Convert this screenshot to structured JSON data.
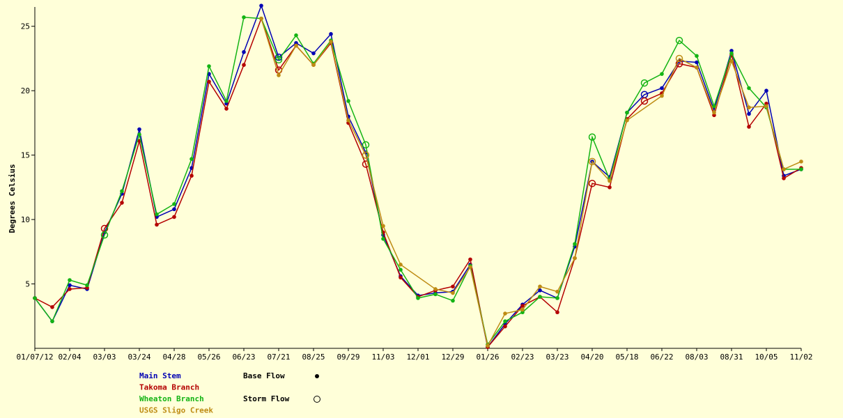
{
  "chart_data": {
    "type": "line",
    "ylabel": "Degrees Celsius",
    "xlabel": "",
    "ylim": [
      0,
      26.5
    ],
    "yticks": [
      5,
      10,
      15,
      20,
      25
    ],
    "x_tick_labels": [
      "01/07/12",
      "02/04",
      "03/03",
      "03/24",
      "04/28",
      "05/26",
      "06/23",
      "07/21",
      "08/25",
      "09/29",
      "11/03",
      "12/01",
      "12/29",
      "01/26",
      "02/23",
      "03/23",
      "04/20",
      "05/18",
      "06/22",
      "08/03",
      "08/31",
      "10/05",
      "11/02"
    ],
    "n_points": 45,
    "series": [
      {
        "name": "Main Stem",
        "color": "#0000b4",
        "values": [
          3.9,
          2.1,
          4.9,
          4.6,
          9.0,
          12.0,
          17.0,
          10.2,
          10.8,
          14.0,
          21.3,
          19.0,
          23.0,
          26.6,
          22.6,
          23.7,
          22.9,
          24.4,
          18.0,
          15.2,
          8.8,
          5.6,
          4.1,
          4.3,
          4.4,
          6.5,
          0.1,
          1.9,
          3.4,
          4.5,
          3.9,
          7.9,
          14.5,
          13.3,
          18.3,
          19.7,
          20.2,
          22.3,
          22.2,
          18.5,
          23.1,
          18.2,
          20.0,
          13.4,
          13.9
        ],
        "storm": [
          false,
          false,
          false,
          false,
          false,
          false,
          false,
          false,
          false,
          false,
          false,
          false,
          false,
          false,
          true,
          false,
          false,
          false,
          false,
          false,
          false,
          false,
          false,
          false,
          false,
          false,
          false,
          false,
          false,
          false,
          false,
          false,
          false,
          false,
          false,
          true,
          false,
          false,
          false,
          false,
          false,
          false,
          false,
          false,
          false
        ]
      },
      {
        "name": "Takoma Branch",
        "color": "#b40000",
        "values": [
          3.9,
          3.2,
          4.6,
          4.7,
          9.3,
          11.3,
          16.1,
          9.6,
          10.2,
          13.4,
          20.7,
          18.6,
          22.0,
          25.6,
          21.6,
          23.5,
          22.0,
          23.7,
          17.5,
          14.3,
          9.0,
          5.5,
          4.0,
          4.5,
          4.8,
          6.9,
          0.1,
          1.7,
          3.3,
          4.0,
          2.8,
          7.0,
          12.8,
          12.5,
          17.8,
          19.2,
          19.8,
          22.1,
          21.8,
          18.1,
          22.8,
          17.2,
          19.0,
          13.2,
          14.0
        ],
        "storm": [
          false,
          false,
          false,
          false,
          true,
          false,
          false,
          false,
          false,
          false,
          false,
          false,
          false,
          false,
          true,
          false,
          false,
          false,
          false,
          true,
          false,
          false,
          false,
          false,
          false,
          false,
          false,
          false,
          false,
          false,
          false,
          false,
          true,
          false,
          false,
          true,
          false,
          true,
          false,
          false,
          false,
          false,
          false,
          false,
          false
        ]
      },
      {
        "name": "Wheaton Branch",
        "color": "#14b414",
        "values": [
          3.9,
          2.1,
          5.3,
          4.9,
          8.8,
          12.2,
          16.6,
          10.4,
          11.2,
          14.7,
          21.9,
          19.2,
          25.7,
          25.6,
          22.4,
          24.3,
          22.1,
          23.9,
          19.2,
          15.8,
          8.5,
          6.1,
          3.9,
          4.2,
          3.7,
          6.4,
          0.3,
          2.1,
          2.8,
          4.0,
          3.9,
          8.1,
          16.4,
          13.1,
          18.3,
          20.6,
          21.3,
          23.9,
          22.7,
          18.8,
          22.9,
          20.2,
          18.7,
          13.9,
          13.9
        ],
        "storm": [
          false,
          false,
          false,
          false,
          true,
          false,
          false,
          false,
          false,
          false,
          false,
          false,
          false,
          false,
          true,
          false,
          false,
          false,
          false,
          true,
          false,
          false,
          false,
          false,
          false,
          false,
          false,
          false,
          false,
          false,
          false,
          false,
          true,
          false,
          false,
          true,
          false,
          true,
          false,
          false,
          false,
          false,
          false,
          false,
          false
        ]
      },
      {
        "name": "USGS Sligo Creek",
        "color": "#be8c14",
        "values": [
          null,
          null,
          null,
          null,
          null,
          null,
          null,
          null,
          null,
          null,
          null,
          null,
          null,
          25.6,
          21.2,
          23.5,
          22.0,
          23.8,
          17.7,
          15.0,
          9.5,
          6.5,
          null,
          4.6,
          4.3,
          6.3,
          0.2,
          2.7,
          3.0,
          4.8,
          4.4,
          7.0,
          14.5,
          13.0,
          17.7,
          null,
          19.6,
          22.5,
          21.8,
          18.3,
          22.3,
          18.7,
          18.8,
          13.9,
          14.5
        ],
        "storm": [
          false,
          false,
          false,
          false,
          false,
          false,
          false,
          false,
          false,
          false,
          false,
          false,
          false,
          false,
          false,
          false,
          false,
          false,
          false,
          true,
          false,
          false,
          false,
          false,
          false,
          false,
          false,
          false,
          false,
          false,
          false,
          false,
          true,
          false,
          false,
          false,
          false,
          true,
          false,
          false,
          false,
          false,
          false,
          false,
          false
        ]
      }
    ],
    "legend": {
      "placement": "bottom-left",
      "base_flow_label": "Base Flow",
      "storm_flow_label": "Storm Flow"
    },
    "grid": false
  }
}
